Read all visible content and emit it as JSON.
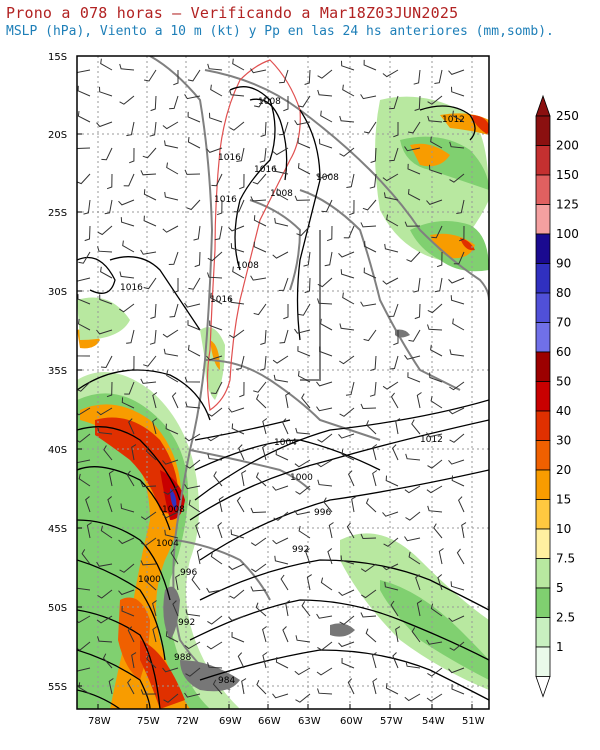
{
  "header": {
    "title": "Prono a 078 horas — Verificando a Mar18Z03JUN2025",
    "subtitle": "MSLP (hPa), Viento a 10 m (kt) y Pp en las 24 hs anteriores (mm,somb)."
  },
  "map": {
    "lat_labels": [
      "15S",
      "20S",
      "25S",
      "30S",
      "35S",
      "40S",
      "45S",
      "50S",
      "55S"
    ],
    "lon_labels": [
      "78W",
      "75W",
      "72W",
      "69W",
      "66W",
      "63W",
      "60W",
      "57W",
      "54W",
      "51W"
    ],
    "isobar_labels": [
      "1008",
      "1012",
      "1016",
      "1016",
      "1008",
      "1016",
      "1008",
      "1016",
      "1008",
      "1016",
      "1004",
      "1000",
      "996",
      "992",
      "1008",
      "1004",
      "996",
      "1000",
      "992",
      "988",
      "984",
      "1012"
    ],
    "colors": {
      "isobar": "#000000",
      "high_terrain": "#e05050",
      "borders": "#808080",
      "grid": "#999999"
    }
  },
  "colorbar": {
    "labels": [
      "250",
      "200",
      "150",
      "125",
      "100",
      "90",
      "80",
      "70",
      "60",
      "50",
      "40",
      "30",
      "20",
      "15",
      "10",
      "7.5",
      "5",
      "2.5",
      "1"
    ],
    "colors": [
      "#8b1010",
      "#c43030",
      "#e06060",
      "#f4a0a0",
      "#1a0a90",
      "#3030c0",
      "#5050d8",
      "#7070e8",
      "#9c0000",
      "#c80000",
      "#e03000",
      "#f06000",
      "#f89c00",
      "#ffc840",
      "#fff0a0",
      "#b8e8a0",
      "#80d070",
      "#c8f0c0",
      "#eafaea"
    ]
  }
}
